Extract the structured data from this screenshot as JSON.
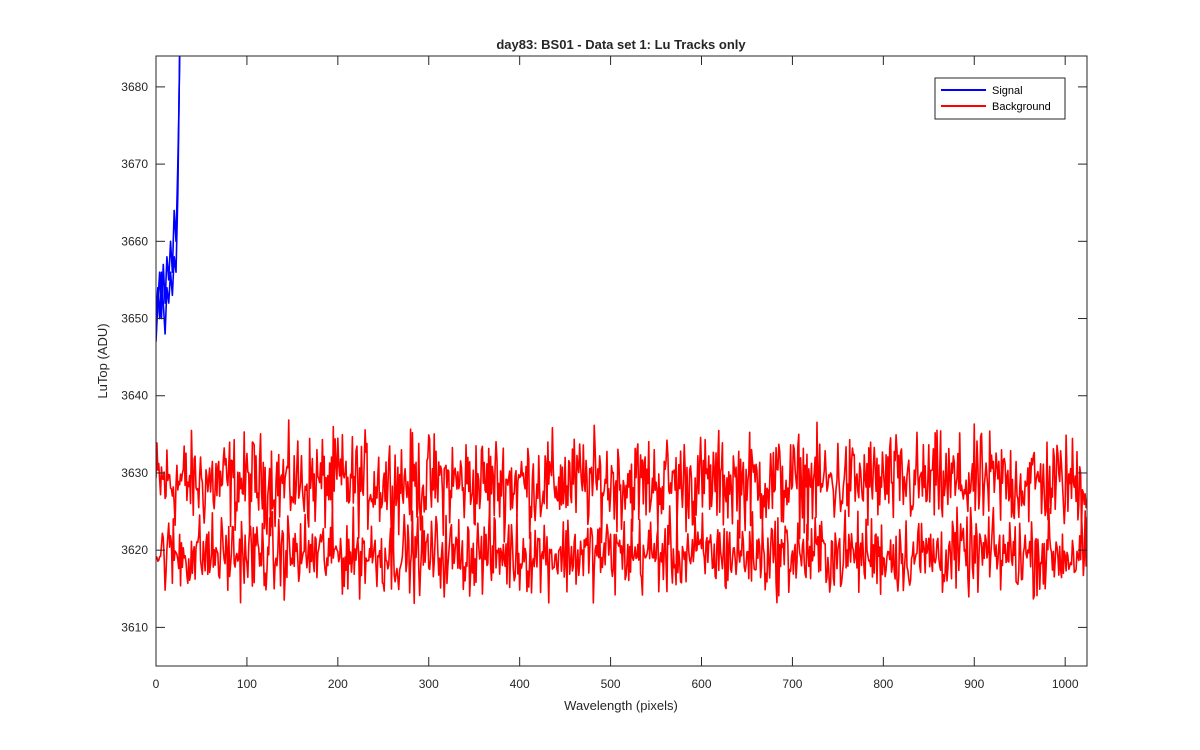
{
  "chart_data": {
    "type": "line",
    "title": "day83: BS01 - Data set 1: Lu Tracks only",
    "xlabel": "Wavelength (pixels)",
    "ylabel": "LuTop (ADU)",
    "xlim": [
      0,
      1024
    ],
    "ylim": [
      3605,
      3684
    ],
    "xticks": [
      0,
      100,
      200,
      300,
      400,
      500,
      600,
      700,
      800,
      900,
      1000
    ],
    "xtick_labels": [
      "0",
      "100",
      "200",
      "300",
      "400",
      "500",
      "600",
      "700",
      "800",
      "900",
      "1000"
    ],
    "yticks": [
      3610,
      3620,
      3630,
      3640,
      3650,
      3660,
      3670,
      3680
    ],
    "ytick_labels": [
      "3610",
      "3620",
      "3630",
      "3640",
      "3650",
      "3660",
      "3670",
      "3680"
    ],
    "grid": false,
    "legend": {
      "position": "top-right",
      "entries": [
        {
          "label": "Signal",
          "color": "#0000ff"
        },
        {
          "label": "Background",
          "color": "#ff0000"
        }
      ]
    },
    "series": [
      {
        "name": "Signal",
        "color": "#0000ff",
        "x": [
          0,
          2,
          4,
          6,
          8,
          10,
          12,
          14,
          16,
          18,
          20,
          22,
          24,
          25,
          26
        ],
        "y": [
          3647,
          3652,
          3656,
          3650,
          3657,
          3652,
          3658,
          3655,
          3660,
          3656,
          3664,
          3660,
          3670,
          3676,
          3684
        ]
      },
      {
        "name": "Signal",
        "color": "#0000ff",
        "x": [
          0,
          2,
          4,
          6,
          8,
          10,
          12,
          14,
          16,
          18,
          20,
          22,
          24,
          25,
          26
        ],
        "y": [
          3650,
          3654,
          3650,
          3656,
          3652,
          3648,
          3654,
          3652,
          3656,
          3653,
          3658,
          3656,
          3666,
          3675,
          3684
        ]
      },
      {
        "name": "Background",
        "color": "#ff0000",
        "x_start": 0,
        "x_end": 1024,
        "mean": 3628.8,
        "noise_amplitude": 3.0,
        "peak_max": 3634.5
      },
      {
        "name": "Background",
        "color": "#ff0000",
        "x_start": 0,
        "x_end": 1024,
        "mean": 3619.5,
        "noise_amplitude": 2.5,
        "peak_min": 3615
      }
    ]
  }
}
